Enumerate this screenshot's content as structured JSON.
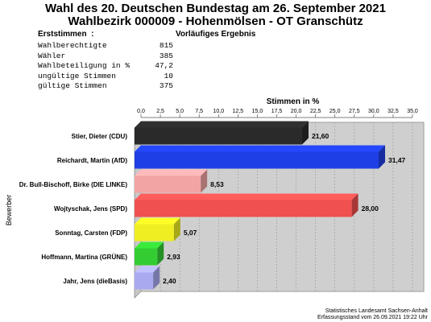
{
  "header": {
    "title_line1": "Wahl des 20. Deutschen Bundestag am 26. September 2021",
    "title_line2": "Wahlbezirk 000009 - Hohenmölsen - OT Granschütz"
  },
  "info": {
    "left_heading": "Erststimmen  :",
    "right_heading": "Vorläufiges Ergebnis",
    "stats": [
      {
        "label": "Wahlberechtigte",
        "value": "815"
      },
      {
        "label": "Wähler",
        "value": "385"
      },
      {
        "label": "Wahlbeteiligung in %",
        "value": "47,2"
      },
      {
        "label": "ungültige Stimmen",
        "value": "10"
      },
      {
        "label": "gültige Stimmen",
        "value": "375"
      }
    ]
  },
  "chart_data": {
    "type": "bar",
    "orientation": "horizontal",
    "xlabel": "Stimmen in %",
    "ylabel": "Bewerber",
    "xlim": [
      0,
      35
    ],
    "x_ticks": [
      "0,0",
      "2,5",
      "5,0",
      "7,5",
      "10,0",
      "12,5",
      "15,0",
      "17,5",
      "20,0",
      "22,5",
      "25,0",
      "27,5",
      "30,0",
      "32,5",
      "35,0"
    ],
    "grid": "vertical dashed",
    "categories": [
      "Stier, Dieter (CDU)",
      "Reichardt, Martin (AfD)",
      "Dr. Bull-Bischoff, Birke (DIE LINKE)",
      "Wojtyschak, Jens (SPD)",
      "Sonntag, Carsten (FDP)",
      "Hoffmann, Martina (GRÜNE)",
      "Jahr, Jens (dieBasis)"
    ],
    "values": [
      21.6,
      31.47,
      8.53,
      28.0,
      5.07,
      2.93,
      2.4
    ],
    "value_labels": [
      "21,60",
      "31,47",
      "8,53",
      "28,00",
      "5,07",
      "2,93",
      "2,40"
    ],
    "colors": [
      "#2a2a2a",
      "#1f3fe6",
      "#f2a3a3",
      "#f05050",
      "#eeee22",
      "#33cc33",
      "#a9a9f0"
    ]
  },
  "footer": {
    "line1": "Statistisches Landesamt Sachsen-Anhalt",
    "line2": "Erfassungsstand vom 26.09.2021 19:22 Uhr"
  }
}
